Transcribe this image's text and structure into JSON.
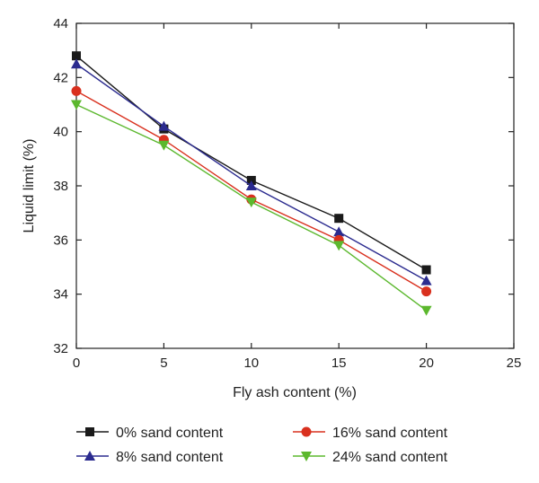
{
  "chart_data": {
    "type": "line",
    "xlabel": "Fly ash content (%)",
    "ylabel": "Liquid limit (%)",
    "xlim": [
      0,
      25
    ],
    "ylim": [
      32,
      44
    ],
    "xticks": [
      0,
      5,
      10,
      15,
      20,
      25
    ],
    "yticks": [
      32,
      34,
      36,
      38,
      40,
      42,
      44
    ],
    "grid": false,
    "legend_position": "bottom",
    "x": [
      0,
      5,
      10,
      15,
      20
    ],
    "series": [
      {
        "name": "0% sand content",
        "marker": "square",
        "color": "#1a1a1a",
        "values": [
          42.8,
          40.1,
          38.2,
          36.8,
          34.9
        ]
      },
      {
        "name": "8% sand content",
        "marker": "triangle-up",
        "color": "#2b2b8f",
        "values": [
          42.5,
          40.2,
          38.0,
          36.3,
          34.5
        ]
      },
      {
        "name": "16% sand content",
        "marker": "circle",
        "color": "#d9301e",
        "values": [
          41.5,
          39.7,
          37.5,
          36.0,
          34.1
        ]
      },
      {
        "name": "24% sand content",
        "marker": "triangle-down",
        "color": "#5cb82e",
        "values": [
          41.0,
          39.5,
          37.4,
          35.8,
          33.4
        ]
      }
    ]
  }
}
